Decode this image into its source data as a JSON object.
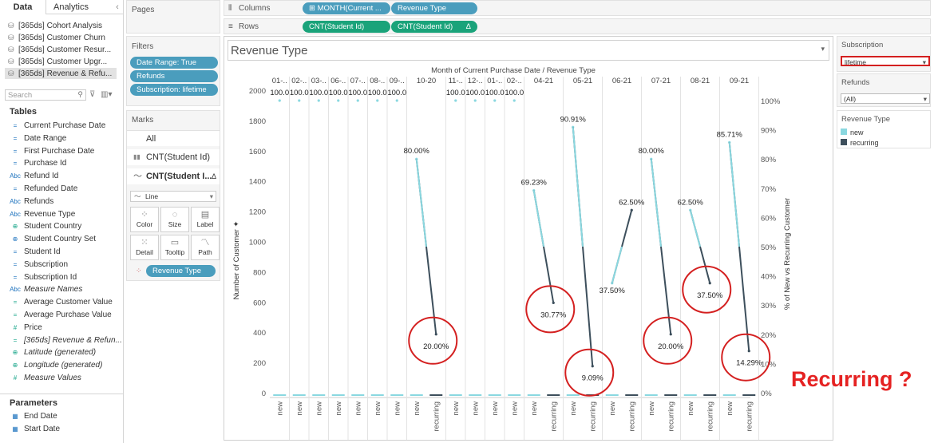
{
  "tabs": {
    "data": "Data",
    "analytics": "Analytics"
  },
  "datasources": [
    "[365ds] Cohort Analysis",
    "[365ds] Customer Churn",
    "[365ds] Customer Resur...",
    "[365ds] Customer Upgr...",
    "[365ds] Revenue & Refu..."
  ],
  "search": {
    "placeholder": "Search"
  },
  "tables": {
    "title": "Tables",
    "fields": [
      {
        "icon": "calendar-icon",
        "type": "=",
        "label": "Current Purchase Date"
      },
      {
        "icon": "date-icon",
        "type": "=",
        "label": "Date Range"
      },
      {
        "icon": "calendar-icon",
        "type": "=",
        "label": "First Purchase Date"
      },
      {
        "icon": "calendar-icon",
        "type": "=",
        "label": "Purchase Id"
      },
      {
        "icon": "text-icon",
        "type": "Abc",
        "label": "Refund Id"
      },
      {
        "icon": "calendar-icon",
        "type": "=",
        "label": "Refunded Date"
      },
      {
        "icon": "text-icon",
        "type": "Abc",
        "label": "Refunds"
      },
      {
        "icon": "text-icon",
        "type": "Abc",
        "label": "Revenue Type"
      },
      {
        "icon": "globe-icon",
        "type": "⊕",
        "label": "Student Country"
      },
      {
        "icon": "set-icon",
        "type": "⊕",
        "label": "Student Country Set"
      },
      {
        "icon": "calendar-icon",
        "type": "=",
        "label": "Student Id"
      },
      {
        "icon": "calendar-icon",
        "type": "=",
        "label": "Subscription"
      },
      {
        "icon": "calendar-icon",
        "type": "=",
        "label": "Subscription Id"
      },
      {
        "icon": "text-icon",
        "type": "Abc",
        "label": "Measure Names"
      },
      {
        "icon": "measure-icon",
        "type": "=",
        "label": "Average Customer Value"
      },
      {
        "icon": "measure-icon",
        "type": "=",
        "label": "Average Purchase Value"
      },
      {
        "icon": "measure-icon",
        "type": "#",
        "label": "Price"
      },
      {
        "icon": "measure-icon",
        "type": "=",
        "label": "[365ds] Revenue & Refun..."
      },
      {
        "icon": "globe-icon",
        "type": "⊕",
        "label": "Latitude (generated)"
      },
      {
        "icon": "globe-icon",
        "type": "⊕",
        "label": "Longitude (generated)"
      },
      {
        "icon": "measure-icon",
        "type": "#",
        "label": "Measure Values"
      }
    ]
  },
  "parameters": {
    "title": "Parameters",
    "items": [
      "End Date",
      "Start Date"
    ]
  },
  "pages": {
    "title": "Pages"
  },
  "filters": {
    "title": "Filters",
    "items": [
      "Date Range: True",
      "Refunds",
      "Subscription: lifetime"
    ]
  },
  "marks": {
    "title": "Marks",
    "all": "All",
    "row1": "CNT(Student Id)",
    "row2": "CNT(Student I...",
    "type": "Line",
    "cards": [
      "Color",
      "Size",
      "Label",
      "Detail",
      "Tooltip",
      "Path"
    ],
    "pill": "Revenue Type"
  },
  "columns": {
    "label": "Columns",
    "pills": [
      "⊞ MONTH(Current ...",
      "Revenue Type"
    ]
  },
  "rows": {
    "label": "Rows",
    "pills": [
      "CNT(Student Id)",
      "CNT(Student Id)"
    ],
    "delta": "Δ"
  },
  "sheet": {
    "title": "Revenue Type",
    "header": "Month of Current Purchase Date / Revenue Type"
  },
  "right": {
    "subscription": {
      "title": "Subscription",
      "value": "lifetime"
    },
    "refunds": {
      "title": "Refunds",
      "value": "(All)"
    },
    "legend": {
      "title": "Revenue Type",
      "items": [
        {
          "label": "new",
          "color": "#8ad8e0"
        },
        {
          "label": "recurring",
          "color": "#3d4f5c"
        }
      ]
    }
  },
  "annotation": {
    "text": "Recurring ?",
    "color": "#e52222"
  },
  "chart_data": {
    "type": "line",
    "title": "Revenue Type",
    "xlabel": "Month of Current Purchase Date / Revenue Type",
    "ylabel": "Number of Customer",
    "y2label": "% of New vs Recurring Customer",
    "yticks": [
      "2000",
      "1800",
      "1600",
      "1400",
      "1200",
      "1000",
      "800",
      "600",
      "400",
      "200",
      "0"
    ],
    "y2ticks": [
      "100%",
      "90%",
      "80%",
      "70%",
      "60%",
      "50%",
      "40%",
      "30%",
      "20%",
      "10%",
      "0%"
    ],
    "ylim": [
      0,
      2000
    ],
    "y2lim": [
      0,
      1
    ],
    "months": [
      {
        "label": "01-..",
        "cats": [
          "new"
        ],
        "pct": [
          1.0
        ],
        "plabels": [
          "100.0"
        ]
      },
      {
        "label": "02-..",
        "cats": [
          "new"
        ],
        "pct": [
          1.0
        ],
        "plabels": [
          "100.0"
        ]
      },
      {
        "label": "03-..",
        "cats": [
          "new"
        ],
        "pct": [
          1.0
        ],
        "plabels": [
          "100.0"
        ]
      },
      {
        "label": "06-..",
        "cats": [
          "new"
        ],
        "pct": [
          1.0
        ],
        "plabels": [
          "100.0"
        ]
      },
      {
        "label": "07-..",
        "cats": [
          "new"
        ],
        "pct": [
          1.0
        ],
        "plabels": [
          "100.0"
        ]
      },
      {
        "label": "08-..",
        "cats": [
          "new"
        ],
        "pct": [
          1.0
        ],
        "plabels": [
          "100.0"
        ]
      },
      {
        "label": "09-..",
        "cats": [
          "new"
        ],
        "pct": [
          1.0
        ],
        "plabels": [
          "100.0"
        ]
      },
      {
        "label": "10-20",
        "cats": [
          "new",
          "recurring"
        ],
        "pct": [
          0.8,
          0.2
        ],
        "plabels": [
          "80.00%",
          "20.00%"
        ]
      },
      {
        "label": "11-..",
        "cats": [
          "new"
        ],
        "pct": [
          1.0
        ],
        "plabels": [
          "100.0"
        ]
      },
      {
        "label": "12-..",
        "cats": [
          "new"
        ],
        "pct": [
          1.0
        ],
        "plabels": [
          "100.0"
        ]
      },
      {
        "label": "01-..",
        "cats": [
          "new"
        ],
        "pct": [
          1.0
        ],
        "plabels": [
          "100.0"
        ]
      },
      {
        "label": "02-..",
        "cats": [
          "new"
        ],
        "pct": [
          1.0
        ],
        "plabels": [
          "100.0"
        ]
      },
      {
        "label": "04-21",
        "cats": [
          "new",
          "recurring"
        ],
        "pct": [
          0.6923,
          0.3077
        ],
        "plabels": [
          "69.23%",
          "30.77%"
        ]
      },
      {
        "label": "05-21",
        "cats": [
          "new",
          "recurring"
        ],
        "pct": [
          0.9091,
          0.0909
        ],
        "plabels": [
          "90.91%",
          "9.09%"
        ]
      },
      {
        "label": "06-21",
        "cats": [
          "new",
          "recurring"
        ],
        "pct": [
          0.375,
          0.625
        ],
        "plabels": [
          "37.50%",
          "62.50%"
        ]
      },
      {
        "label": "07-21",
        "cats": [
          "new",
          "recurring"
        ],
        "pct": [
          0.8,
          0.2
        ],
        "plabels": [
          "80.00%",
          "20.00%"
        ]
      },
      {
        "label": "08-21",
        "cats": [
          "new",
          "recurring"
        ],
        "pct": [
          0.625,
          0.375
        ],
        "plabels": [
          "62.50%",
          "37.50%"
        ]
      },
      {
        "label": "09-21",
        "cats": [
          "new",
          "recurring"
        ],
        "pct": [
          0.8571,
          0.1429
        ],
        "plabels": [
          "85.71%",
          "14.29%"
        ]
      }
    ],
    "circled": [
      "20.00%",
      "30.77%",
      "9.09%",
      "20.00%",
      "37.50%",
      "14.29%"
    ]
  }
}
